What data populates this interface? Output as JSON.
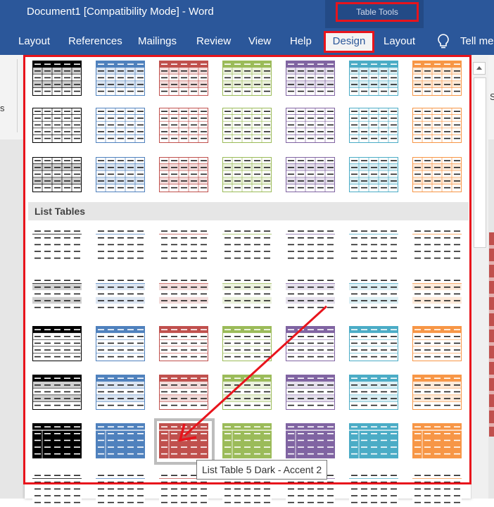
{
  "titlebar": {
    "document_title": "Document1 [Compatibility Mode]  -  Word",
    "context_tab_group": "Table Tools"
  },
  "ribbon": {
    "tabs": [
      {
        "label": "Layout"
      },
      {
        "label": "References"
      },
      {
        "label": "Mailings"
      },
      {
        "label": "Review"
      },
      {
        "label": "View"
      },
      {
        "label": "Help"
      },
      {
        "label": "Design",
        "active": true
      },
      {
        "label": "Layout"
      }
    ],
    "tell_me": "Tell me",
    "cropped_left_text": "s",
    "cropped_right_text": "S"
  },
  "gallery": {
    "section_label": "List Tables",
    "tooltip": "List Table 5 Dark - Accent 2",
    "accent_colors": [
      "#000000",
      "#4f81bd",
      "#c0504d",
      "#9bbb59",
      "#8064a2",
      "#4bacc6",
      "#f79646"
    ],
    "light_colors": [
      "#d0d0d0",
      "#dbe5f1",
      "#f2dcdb",
      "#ebf1dd",
      "#e5e0ec",
      "#dbeef3",
      "#fdeada"
    ],
    "row_styles": [
      {
        "style": "grid-header-banded"
      },
      {
        "style": "grid-lines"
      },
      {
        "style": "grid-light-banded"
      },
      {
        "style": "list-light"
      },
      {
        "style": "list-banded"
      },
      {
        "style": "list-header"
      },
      {
        "style": "list-header-banded"
      },
      {
        "style": "list-dark"
      }
    ],
    "selected": {
      "row": 7,
      "col": 2
    }
  },
  "colors": {
    "brand": "#2b579a",
    "highlight": "#e8141c"
  }
}
